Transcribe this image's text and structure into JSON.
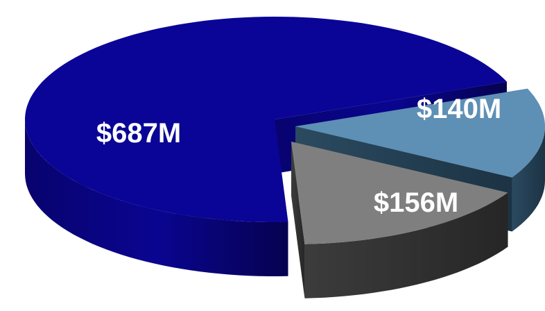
{
  "chart_data": {
    "type": "pie",
    "style": "3d-exploded",
    "title": "",
    "legend": "none",
    "slices": [
      {
        "value": 687,
        "label": "$687M",
        "color": "#0A0596"
      },
      {
        "value": 140,
        "label": "$140M",
        "color": "#5E8FB5"
      },
      {
        "value": 156,
        "label": "$156M",
        "color": "#7F7F7F"
      }
    ]
  }
}
